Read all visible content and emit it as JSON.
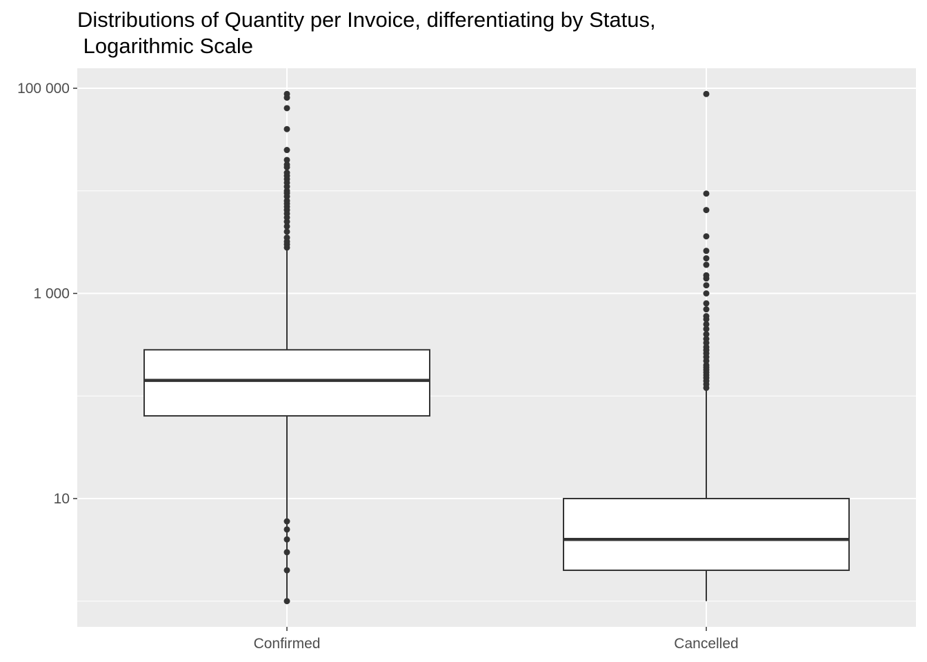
{
  "chart_data": {
    "type": "boxplot",
    "title_line1": "Distributions of Quantity per Invoice, differentiating by Status,",
    "title_line2": " Logarithmic Scale",
    "xlabel": "",
    "ylabel": "",
    "y_scale": "log10",
    "ylim": [
      0.8,
      150000
    ],
    "grid": true,
    "y_ticks": [
      {
        "value": 10,
        "label": "10"
      },
      {
        "value": 1000,
        "label": "1 000"
      },
      {
        "value": 100000,
        "label": "100 000"
      }
    ],
    "categories": [
      "Confirmed",
      "Cancelled"
    ],
    "boxes": [
      {
        "category": "Confirmed",
        "whisker_low": 1,
        "q1": 64,
        "median": 142,
        "q3": 282,
        "whisker_high": 2700,
        "outliers": [
          1,
          2,
          3,
          4,
          5,
          6,
          2800,
          3000,
          3200,
          3500,
          4000,
          4500,
          5000,
          5500,
          6000,
          6500,
          7000,
          7500,
          8000,
          8800,
          9500,
          10000,
          11000,
          12000,
          13000,
          14000,
          15000,
          17000,
          18000,
          20000,
          25000,
          40000,
          64000,
          81000,
          88000
        ]
      },
      {
        "category": "Cancelled",
        "whisker_low": 1,
        "q1": 2,
        "median": 4,
        "q3": 10,
        "whisker_high": 115,
        "outliers": [
          120,
          130,
          140,
          150,
          160,
          170,
          180,
          190,
          200,
          220,
          240,
          260,
          280,
          300,
          330,
          360,
          400,
          450,
          500,
          560,
          600,
          700,
          800,
          1000,
          1200,
          1400,
          1500,
          1900,
          2200,
          2600,
          3600,
          6500,
          9400,
          88000
        ]
      }
    ],
    "colors": {
      "panel_background": "#ebebeb",
      "grid": "#ffffff",
      "box_fill": "#ffffff",
      "box_stroke": "#333333",
      "outlier": "#333333",
      "tick_label": "#4d4d4d",
      "title": "#000000"
    }
  }
}
